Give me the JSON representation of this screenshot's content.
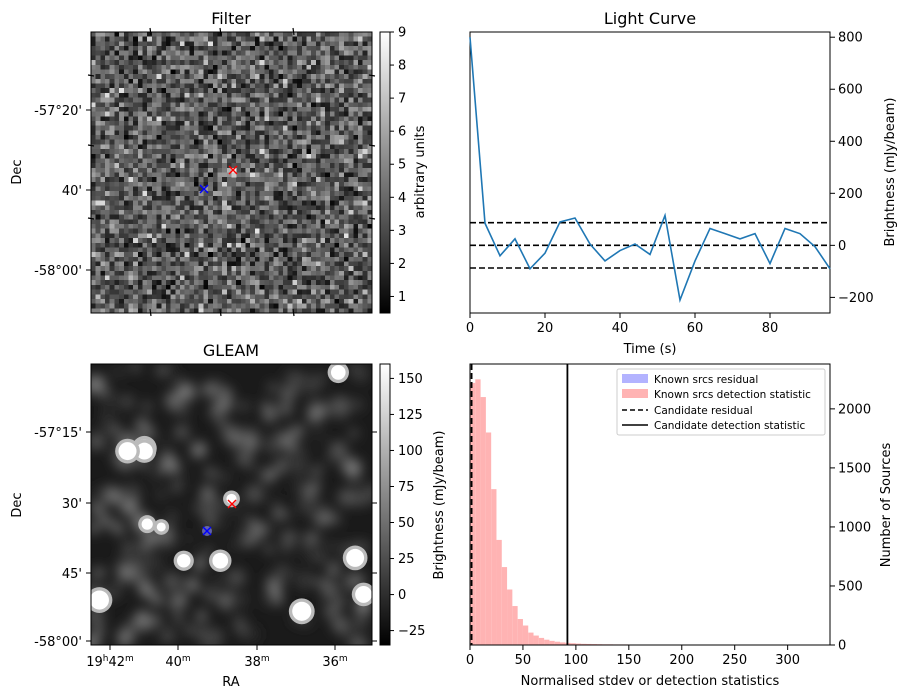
{
  "chart_data": [
    {
      "type": "heatmap",
      "title": "Filter",
      "ylabel": "Dec",
      "yticks": [
        "-57°20'",
        "40'",
        "-58°00'"
      ],
      "colorbar": {
        "label": "arbitrary units",
        "range": [
          0.5,
          9
        ],
        "ticks": [
          "1",
          "2",
          "3",
          "4",
          "5",
          "6",
          "7",
          "8",
          "9"
        ],
        "colormap": "gray"
      },
      "markers": [
        {
          "symbol": "x",
          "color": "#ff0000"
        },
        {
          "symbol": "x",
          "color": "#0000ff"
        }
      ]
    },
    {
      "type": "line",
      "title": "Light Curve",
      "xlabel": "Time (s)",
      "ylabel": "Brightness (mJy/beam)",
      "xlim": [
        0,
        96
      ],
      "ylim": [
        -260,
        820
      ],
      "xticks": [
        0,
        20,
        40,
        60,
        80
      ],
      "yticks": [
        -200,
        0,
        200,
        400,
        600,
        800
      ],
      "color": "#1f77b4",
      "x": [
        0,
        4,
        8,
        12,
        16,
        20,
        24,
        28,
        32,
        36,
        40,
        44,
        48,
        52,
        56,
        60,
        64,
        68,
        72,
        76,
        80,
        84,
        88,
        92,
        96
      ],
      "y": [
        800,
        85,
        -40,
        25,
        -90,
        -30,
        90,
        105,
        5,
        -60,
        -20,
        5,
        -35,
        115,
        -210,
        -60,
        65,
        45,
        25,
        45,
        -70,
        65,
        45,
        -5,
        -90
      ],
      "hlines": [
        {
          "y": 87,
          "style": "dashed",
          "color": "#000000"
        },
        {
          "y": 0,
          "style": "dashed",
          "color": "#000000"
        },
        {
          "y": -87,
          "style": "dashed",
          "color": "#000000"
        }
      ]
    },
    {
      "type": "heatmap",
      "title": "GLEAM",
      "xlabel": "RA",
      "ylabel": "Dec",
      "xticks": [
        "19h42m",
        "40m",
        "38m",
        "36m"
      ],
      "yticks": [
        "-57°15'",
        "30'",
        "45'",
        "-58°00'"
      ],
      "colorbar": {
        "label": "Brightness (mJy/beam)",
        "range": [
          -35,
          160
        ],
        "ticks": [
          "−25",
          "0",
          "25",
          "50",
          "75",
          "100",
          "125",
          "150"
        ],
        "colormap": "gray"
      },
      "markers": [
        {
          "symbol": "x",
          "color": "#ff0000"
        },
        {
          "symbol": "x",
          "color": "#0000ff"
        }
      ]
    },
    {
      "type": "bar",
      "xlabel": "Normalised stdev or detection statistics",
      "ylabel": "Number of Sources",
      "xlim": [
        0,
        340
      ],
      "ylim": [
        0,
        2380
      ],
      "xticks": [
        0,
        50,
        100,
        150,
        200,
        250,
        300
      ],
      "yticks": [
        0,
        500,
        1000,
        1500,
        2000
      ],
      "legend_position": "top-right",
      "series": [
        {
          "name": "Known srcs residual",
          "color": "#b3b3ff",
          "bin_width": 1,
          "bin_start": 0,
          "values": [
            30
          ]
        },
        {
          "name": "Known srcs detection statistic",
          "color": "#ffb3b3",
          "bin_width": 5,
          "bin_start": 0,
          "values": [
            2220,
            2250,
            2100,
            1800,
            1320,
            890,
            660,
            470,
            330,
            220,
            165,
            105,
            80,
            60,
            45,
            35,
            28,
            22,
            18,
            15,
            12,
            10,
            9,
            8,
            7,
            6,
            6,
            5,
            5,
            5,
            4,
            4,
            4,
            3,
            3,
            3,
            3,
            2,
            2,
            2,
            2,
            2,
            2,
            2,
            2,
            1,
            1,
            1,
            1,
            1,
            1,
            1,
            1,
            1,
            1,
            1,
            1,
            1,
            1,
            1,
            1,
            1,
            1,
            1
          ]
        }
      ],
      "vlines": [
        {
          "name": "Candidate residual",
          "x": 1.5,
          "style": "dashed",
          "color": "#000000"
        },
        {
          "name": "Candidate detection statistic",
          "x": 92,
          "style": "solid",
          "color": "#000000"
        }
      ]
    }
  ]
}
